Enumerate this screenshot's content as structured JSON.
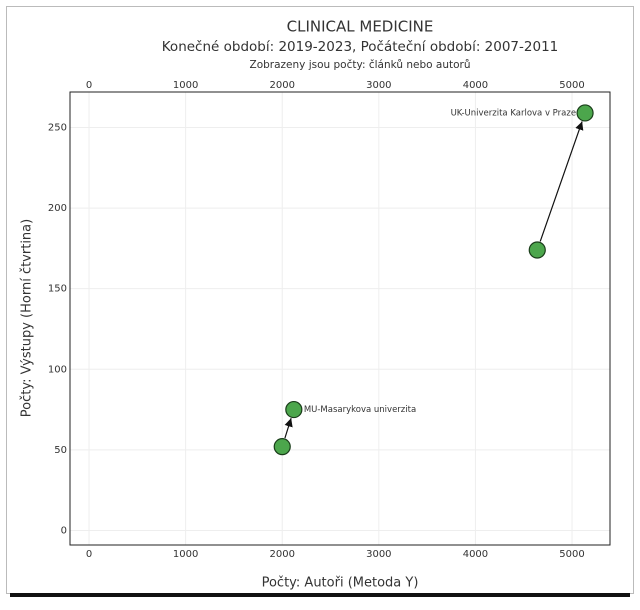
{
  "chart_data": {
    "type": "scatter",
    "title": "CLINICAL MEDICINE",
    "subtitle": "Konečné období: 2019-2023, Počáteční období: 2007-2011",
    "note": "Zobrazeny jsou počty: článků nebo autorů",
    "xlabel": "Počty: Autoři (Metoda Y)",
    "ylabel": "Počty: Výstupy (Horní čtvrtina)",
    "xlim": [
      -197,
      5393
    ],
    "ylim": [
      -9,
      272
    ],
    "xticks": [
      0,
      1000,
      2000,
      3000,
      4000,
      5000
    ],
    "yticks": [
      0,
      50,
      100,
      150,
      200,
      250
    ],
    "grid": true,
    "series": [
      {
        "name": "MU-Masarykova univerzita",
        "color": "#4ca64c",
        "x": [
          2000,
          2120
        ],
        "values": [
          52,
          75
        ]
      },
      {
        "name": "UK-Univerzita Karlova v Praze",
        "color": "#4ca64c",
        "x": [
          4640,
          5135
        ],
        "values": [
          174,
          259
        ]
      }
    ]
  }
}
